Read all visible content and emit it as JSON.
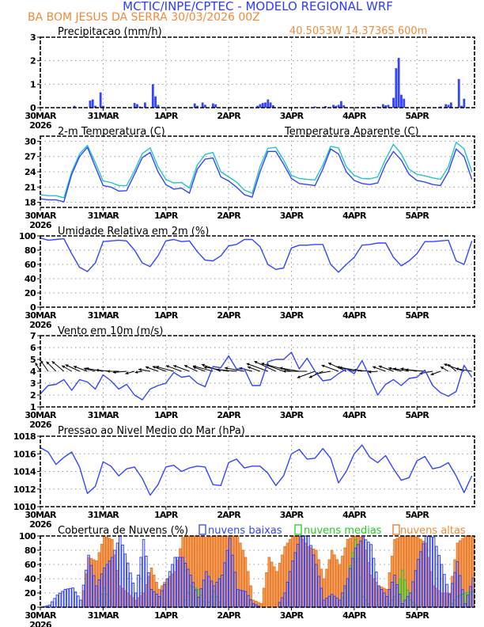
{
  "header": {
    "title": "MCTIC/INPE/CPTEC - MODELO REGIONAL WRF",
    "station": "BA BOM JESUS DA SERRA   30/03/2026 00Z",
    "coords": "40.5053W 14.3736S 600m"
  },
  "colors": {
    "title": "#2b3cff",
    "orange": "#f08a3c",
    "line": "#3344ff",
    "apparent": "#22c4c4",
    "low_cloud": "#3344ff",
    "mid_cloud": "#22cc22",
    "high_cloud_fill": "#f5a462",
    "high_cloud_edge": "#e8792a"
  },
  "chart_data": {
    "type": "line",
    "time_step_hours": 3,
    "x_range_hours": [
      0,
      166
    ],
    "x_tick_hours": [
      0,
      24,
      48,
      72,
      96,
      120,
      144
    ],
    "x_tick_labels": [
      "30MAR",
      "31MAR",
      "1APR",
      "2APR",
      "3APR",
      "4APR",
      "5APR"
    ],
    "x_year_label": "2026",
    "panels": {
      "precip": {
        "type": "bar",
        "title": "Precipitacao (mm/h)",
        "ylim": [
          0,
          3
        ],
        "yticks": [
          "0",
          "1",
          "2",
          "3"
        ],
        "bars": [
          [
            13,
            0.08
          ],
          [
            19,
            0.3
          ],
          [
            20,
            0.35
          ],
          [
            21,
            0.08
          ],
          [
            23,
            0.65
          ],
          [
            24,
            0.08
          ],
          [
            36,
            0.2
          ],
          [
            37,
            0.15
          ],
          [
            38,
            0.05
          ],
          [
            40,
            0.22
          ],
          [
            43,
            1.0
          ],
          [
            44,
            0.48
          ],
          [
            45,
            0.12
          ],
          [
            59,
            0.18
          ],
          [
            60,
            0.08
          ],
          [
            62,
            0.22
          ],
          [
            63,
            0.12
          ],
          [
            66,
            0.18
          ],
          [
            67,
            0.14
          ],
          [
            83,
            0.08
          ],
          [
            84,
            0.15
          ],
          [
            85,
            0.2
          ],
          [
            86,
            0.22
          ],
          [
            87,
            0.35
          ],
          [
            88,
            0.22
          ],
          [
            89,
            0.1
          ],
          [
            105,
            0.05
          ],
          [
            109,
            0.07
          ],
          [
            112,
            0.12
          ],
          [
            113,
            0.08
          ],
          [
            114,
            0.12
          ],
          [
            115,
            0.28
          ],
          [
            116,
            0.1
          ],
          [
            129,
            0.05
          ],
          [
            131,
            0.15
          ],
          [
            132,
            0.1
          ],
          [
            133,
            0.12
          ],
          [
            135,
            0.42
          ],
          [
            136,
            1.68
          ],
          [
            137,
            2.12
          ],
          [
            138,
            0.55
          ],
          [
            139,
            0.38
          ],
          [
            153,
            0.05
          ],
          [
            155,
            0.15
          ],
          [
            156,
            0.12
          ],
          [
            157,
            0.22
          ],
          [
            160,
            1.22
          ],
          [
            161,
            0.08
          ],
          [
            162,
            0.38
          ]
        ]
      },
      "temp": {
        "title": "2-m Temperatura (C)",
        "legend_apparent": "Temperatura Aparente (C)",
        "ylim": [
          17,
          31
        ],
        "yticks": [
          "18",
          "21",
          "24",
          "27",
          "30"
        ],
        "series": [
          {
            "name": "2-m Temperatura (C)",
            "values": [
              18.7,
              18.5,
              18.5,
              18.1,
              23.5,
              27,
              28.8,
              25,
              21.3,
              21,
              20.2,
              20.3,
              23.5,
              26.8,
              27.8,
              24,
              21.5,
              20.6,
              20.8,
              19.8,
              24.5,
              26.5,
              26.7,
              23,
              22.2,
              21,
              19.5,
              19,
              24,
              28,
              28,
              25.5,
              22.7,
              21.7,
              21.5,
              21.3,
              24.5,
              28.5,
              27.5,
              24,
              22.3,
              21.7,
              21.5,
              21.8,
              25.5,
              28,
              26.3,
              23.5,
              22.3,
              22,
              21.5,
              21.3,
              24,
              28.5,
              27,
              22.5
            ]
          },
          {
            "name": "Temperatura Aparente (C)",
            "values": [
              19.5,
              19.3,
              19.3,
              18.9,
              24,
              27.5,
              29.2,
              25.8,
              22.2,
              21.9,
              21.3,
              21.3,
              24.2,
              27.6,
              28.7,
              25,
              22.5,
              21.8,
              21.9,
              20.8,
              25.3,
              27.4,
              27.8,
              24,
              23,
              22,
              20.4,
              19.8,
              25,
              28.6,
              28.8,
              26.3,
              23.3,
              22.7,
              22.5,
              22.4,
              25.3,
              29,
              28.7,
              25,
              23.3,
              22.7,
              22.6,
              23,
              26.5,
              29.4,
              27.5,
              24.5,
              23.5,
              23.2,
              22.8,
              22.5,
              25,
              29.8,
              28.5,
              24
            ]
          }
        ]
      },
      "rh": {
        "title": "Umidade Relativa em 2m (%)",
        "ylim": [
          0,
          100
        ],
        "yticks": [
          "0",
          "20",
          "40",
          "60",
          "80",
          "100"
        ],
        "values": [
          97,
          94,
          95,
          96,
          75,
          56,
          50,
          62,
          92,
          93,
          94,
          93,
          80,
          62,
          57,
          72,
          93,
          95,
          92,
          93,
          78,
          66,
          65,
          72,
          86,
          88,
          95,
          95,
          85,
          60,
          53,
          55,
          83,
          87,
          87,
          88,
          88,
          60,
          49,
          60,
          70,
          87,
          88,
          90,
          90,
          70,
          58,
          65,
          75,
          92,
          92,
          93,
          94,
          65,
          60,
          93
        ]
      },
      "wind": {
        "title": "Vento em 10m (m/s)",
        "ylim": [
          1,
          7
        ],
        "yticks": [
          "1",
          "2",
          "3",
          "4",
          "5",
          "6",
          "7"
        ],
        "speed": [
          2.1,
          2.8,
          2.9,
          3.3,
          2.4,
          3.3,
          3.1,
          2.5,
          3.7,
          3.2,
          2.5,
          2.9,
          2.0,
          1.6,
          2.5,
          2.8,
          3.0,
          3.9,
          3.5,
          3.6,
          3.0,
          2.7,
          4.4,
          4.3,
          5.3,
          4.2,
          4.2,
          2.8,
          2.8,
          4.8,
          5.0,
          5.0,
          5.6,
          4.2,
          5.1,
          4.0,
          3.2,
          3.3,
          3.8,
          4.2,
          3.8,
          4.9,
          3.5,
          2.0,
          2.9,
          3.3,
          2.8,
          3.4,
          3.5,
          4.1,
          2.8,
          2.2,
          1.9,
          2.3,
          4.5,
          3.5
        ],
        "direction_from_deg": [
          150,
          145,
          135,
          130,
          120,
          115,
          110,
          105,
          100,
          95,
          90,
          85,
          75,
          80,
          100,
          110,
          110,
          105,
          110,
          110,
          115,
          110,
          105,
          110,
          100,
          95,
          100,
          105,
          110,
          110,
          115,
          110,
          105,
          100,
          90,
          70,
          65,
          80,
          110,
          115,
          105,
          100,
          95,
          85,
          110,
          110,
          105,
          100,
          100,
          95,
          80,
          70,
          120,
          130,
          110,
          100
        ]
      },
      "pressure": {
        "title": "Pressao ao Nivel Medio do Mar (hPa)",
        "ylim": [
          1010,
          1018
        ],
        "yticks": [
          "1010",
          "1012",
          "1014",
          "1016",
          "1018"
        ],
        "values": [
          1016.7,
          1016.2,
          1014.8,
          1015.6,
          1016.2,
          1014.5,
          1011.5,
          1012.3,
          1015.1,
          1014.6,
          1013.5,
          1014.3,
          1014.5,
          1013.2,
          1011.3,
          1012.5,
          1014.5,
          1014.7,
          1014.0,
          1014.4,
          1014.6,
          1014.5,
          1012.5,
          1012.4,
          1015.0,
          1015.4,
          1014.4,
          1014.6,
          1014.6,
          1013.8,
          1012.4,
          1013.5,
          1016.0,
          1016.5,
          1015.4,
          1015.5,
          1016.6,
          1015.5,
          1012.7,
          1014.0,
          1016.0,
          1017.0,
          1015.6,
          1015.0,
          1015.8,
          1014.3,
          1013.0,
          1013.3,
          1015.2,
          1015.7,
          1014.3,
          1014.5,
          1015.0,
          1013.5,
          1011.6,
          1013.5
        ]
      },
      "clouds": {
        "type": "bar",
        "title": "Cobertura de Nuvens (%)",
        "ylim": [
          0,
          100
        ],
        "yticks": [
          "0",
          "20",
          "40",
          "60",
          "80",
          "100"
        ],
        "series": [
          {
            "name": "nuvens baixas",
            "values": [
              0,
              3,
              17,
              25,
              27,
              10,
              73,
              30,
              55,
              70,
              100,
              62,
              20,
              95,
              25,
              15,
              40,
              70,
              70,
              45,
              14,
              50,
              30,
              45,
              97,
              25,
              22,
              5,
              0,
              0,
              0,
              20,
              65,
              100,
              100,
              60,
              10,
              18,
              10,
              40,
              83,
              98,
              88,
              30,
              15,
              45,
              5,
              20,
              67,
              100,
              98,
              60,
              18,
              64,
              5,
              41
            ]
          },
          {
            "name": "nuvens medias",
            "values": [
              0,
              0,
              0,
              0,
              0,
              0,
              0,
              0,
              27,
              0,
              0,
              0,
              0,
              0,
              0,
              0,
              0,
              0,
              0,
              30,
              25,
              0,
              22,
              0,
              0,
              0,
              0,
              0,
              0,
              0,
              0,
              0,
              0,
              0,
              0,
              0,
              0,
              0,
              0,
              40,
              95,
              15,
              0,
              0,
              0,
              15,
              52,
              10,
              0,
              0,
              0,
              0,
              0,
              15,
              20,
              22
            ]
          },
          {
            "name": "nuvens altas",
            "values": [
              0,
              0,
              0,
              0,
              0,
              0,
              70,
              65,
              100,
              95,
              30,
              20,
              10,
              20,
              55,
              25,
              40,
              50,
              98,
              100,
              100,
              98,
              100,
              100,
              100,
              100,
              70,
              10,
              5,
              70,
              50,
              85,
              100,
              100,
              85,
              80,
              40,
              80,
              60,
              95,
              100,
              98,
              45,
              30,
              25,
              95,
              100,
              100,
              98,
              90,
              30,
              20,
              20,
              90,
              100,
              100
            ]
          }
        ]
      }
    }
  }
}
